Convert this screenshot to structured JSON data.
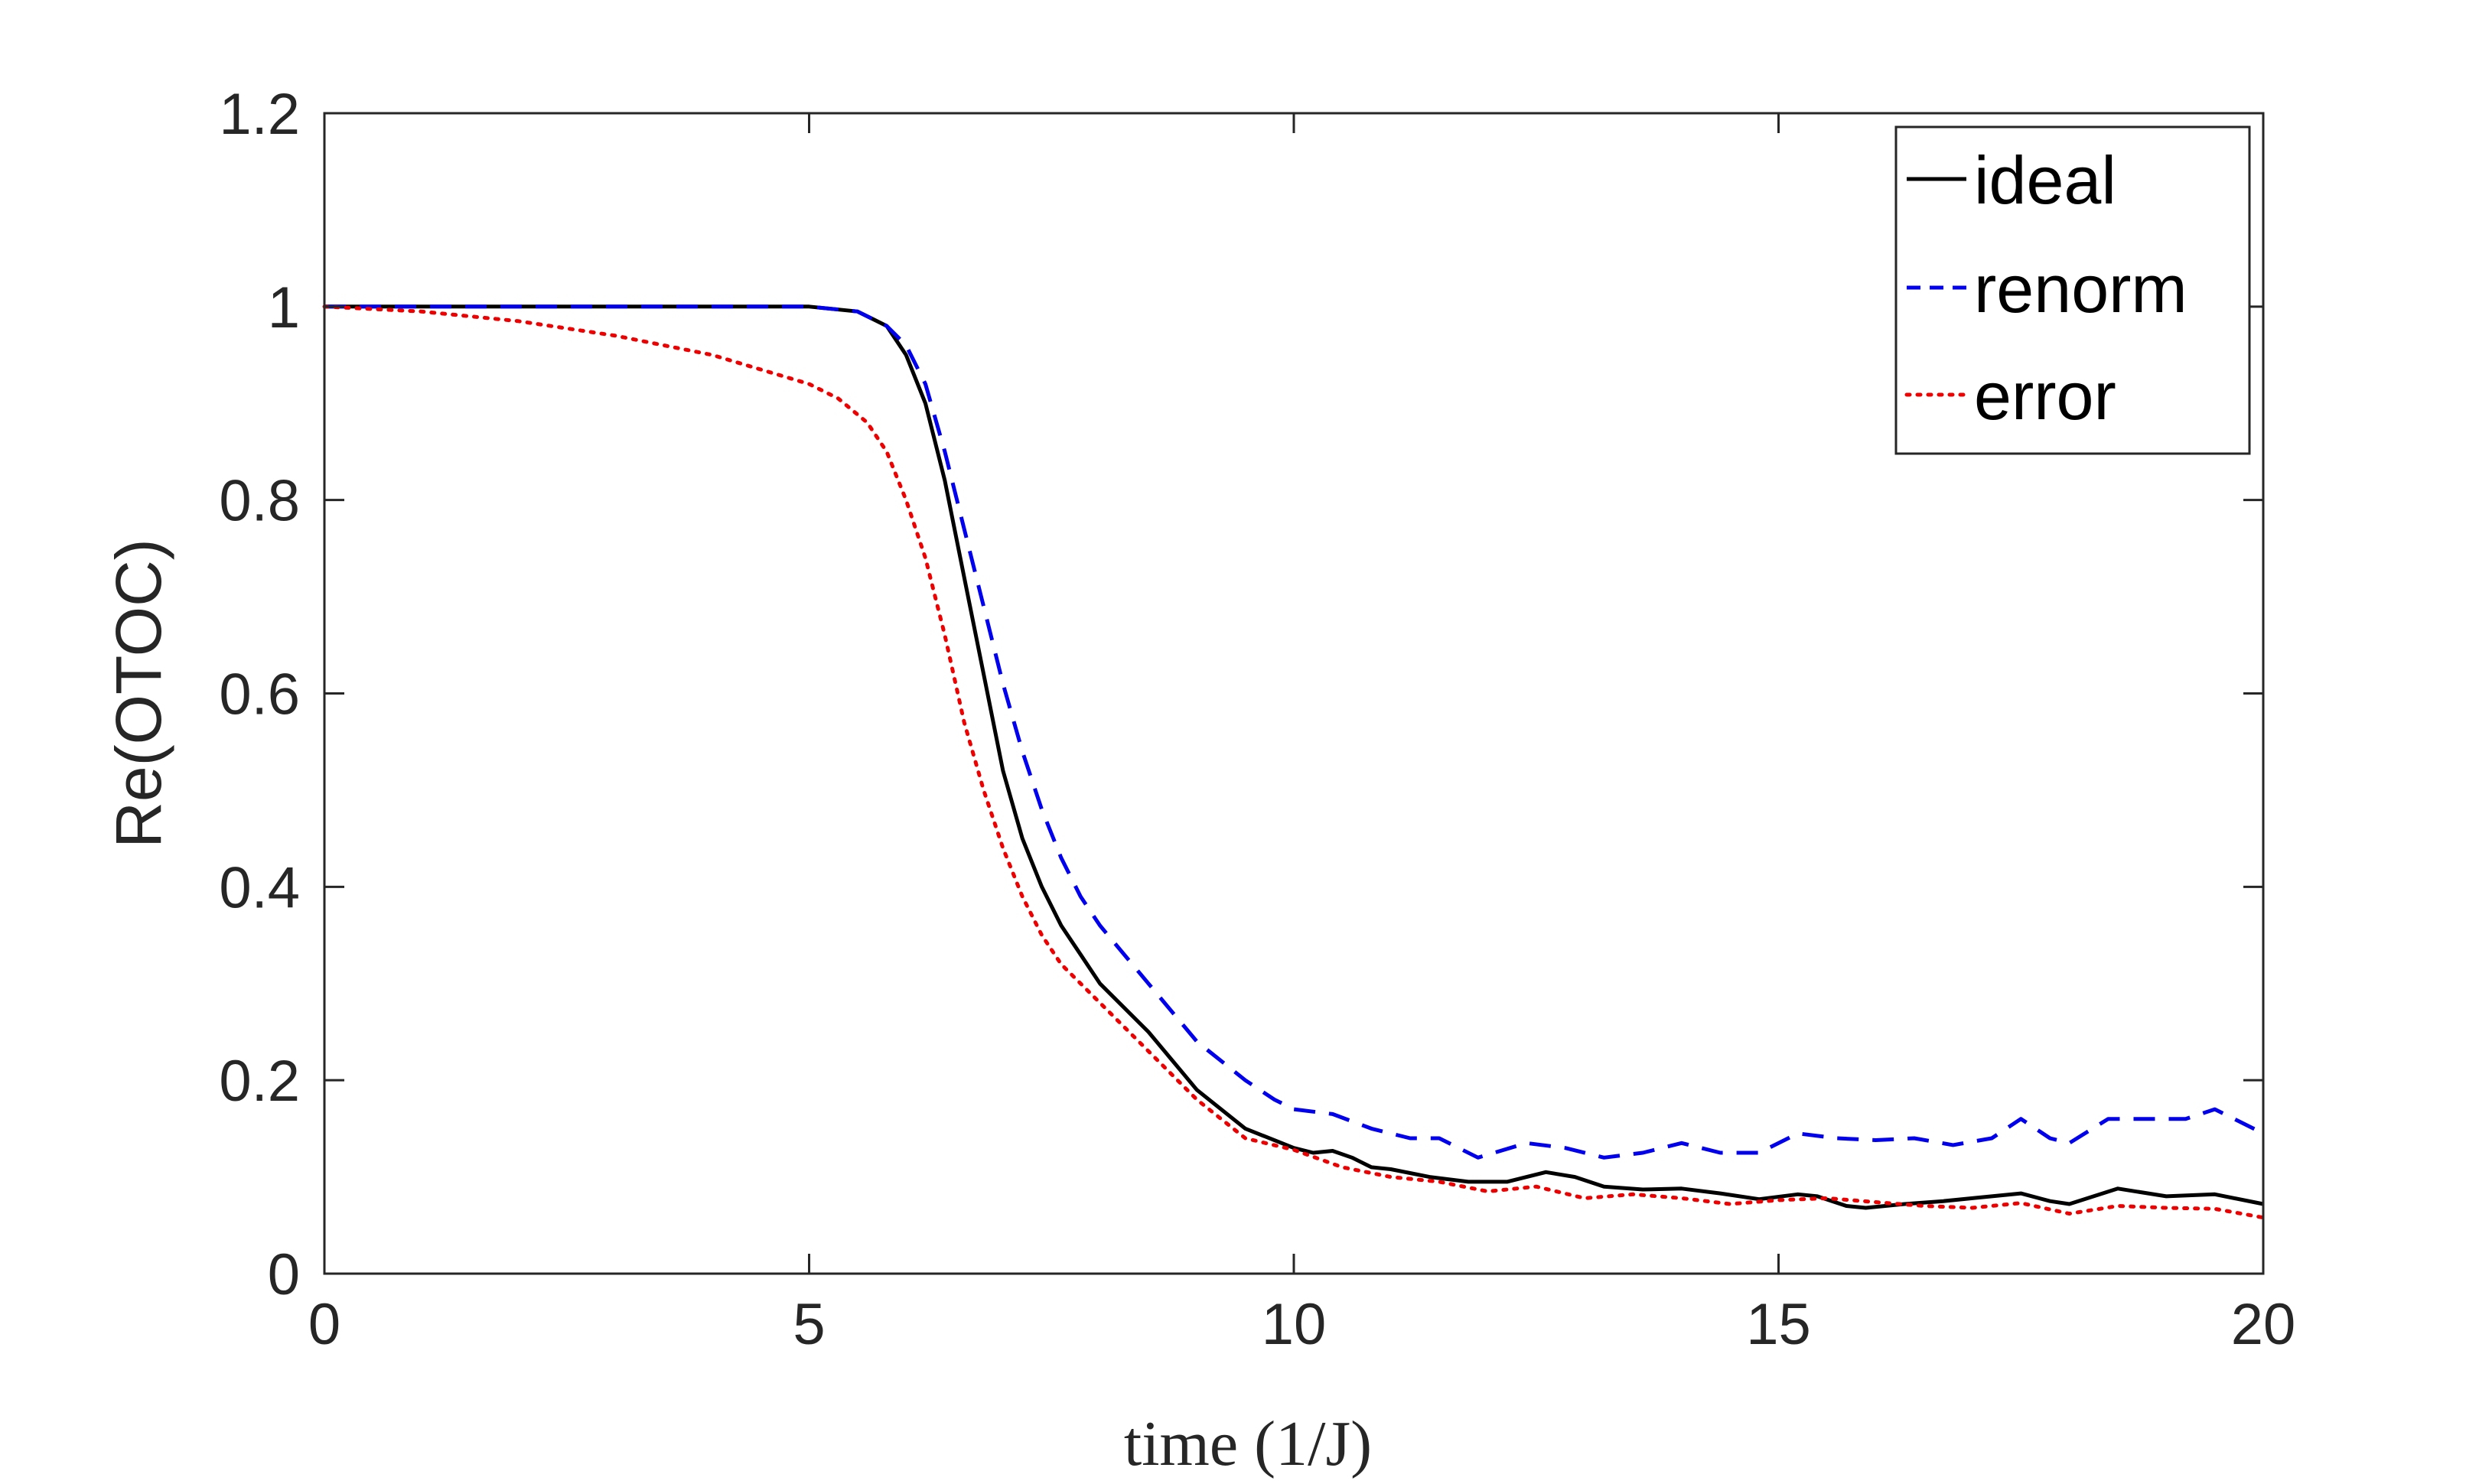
{
  "chart_data": {
    "type": "line",
    "title": "",
    "xlabel": "time (1/J)",
    "ylabel": "Re(OTOC)",
    "xlim": [
      0,
      20
    ],
    "ylim": [
      0,
      1.2
    ],
    "xticks": [
      0,
      5,
      10,
      15,
      20
    ],
    "xtick_labels": [
      "0",
      "5",
      "10",
      "15",
      "20"
    ],
    "yticks": [
      0,
      0.2,
      0.4,
      0.6,
      0.8,
      1,
      1.2
    ],
    "ytick_labels": [
      "0",
      "0.2",
      "0.4",
      "0.6",
      "0.8",
      "1",
      "1.2"
    ],
    "grid": false,
    "legend_position": "top-right",
    "series": [
      {
        "name": "ideal",
        "color": "#000000",
        "style": "solid",
        "x": [
          0,
          1,
          2,
          3,
          4,
          5,
          5.5,
          5.8,
          6.0,
          6.2,
          6.4,
          6.6,
          6.8,
          7.0,
          7.2,
          7.4,
          7.6,
          7.8,
          8.0,
          8.5,
          9.0,
          9.5,
          10.0,
          10.2,
          10.4,
          10.6,
          10.8,
          11.0,
          11.4,
          11.8,
          12.2,
          12.6,
          12.9,
          13.2,
          13.6,
          14.0,
          14.4,
          14.8,
          15.2,
          15.4,
          15.7,
          15.9,
          16.3,
          16.7,
          17.0,
          17.5,
          17.8,
          18.0,
          18.5,
          19.0,
          19.5,
          20.0
        ],
        "y": [
          1.0,
          1.0,
          1.0,
          1.0,
          1.0,
          1.0,
          0.995,
          0.98,
          0.95,
          0.9,
          0.82,
          0.72,
          0.62,
          0.52,
          0.45,
          0.4,
          0.36,
          0.33,
          0.3,
          0.25,
          0.19,
          0.15,
          0.13,
          0.125,
          0.127,
          0.12,
          0.11,
          0.108,
          0.1,
          0.095,
          0.095,
          0.105,
          0.1,
          0.09,
          0.087,
          0.088,
          0.083,
          0.077,
          0.082,
          0.08,
          0.07,
          0.068,
          0.072,
          0.075,
          0.078,
          0.083,
          0.075,
          0.072,
          0.088,
          0.08,
          0.082,
          0.072
        ]
      },
      {
        "name": "renorm",
        "color": "#0000ee",
        "style": "dashed",
        "x": [
          0,
          1,
          2,
          3,
          4,
          5,
          5.5,
          5.8,
          6.0,
          6.2,
          6.4,
          6.6,
          6.8,
          7.0,
          7.2,
          7.4,
          7.6,
          7.8,
          8.0,
          8.5,
          9.0,
          9.5,
          9.8,
          10.0,
          10.4,
          10.8,
          11.2,
          11.5,
          11.9,
          12.4,
          12.8,
          13.2,
          13.6,
          14.0,
          14.4,
          14.8,
          15.2,
          15.6,
          16.0,
          16.4,
          16.8,
          17.2,
          17.5,
          17.8,
          18.0,
          18.4,
          18.8,
          19.2,
          19.5,
          20.0
        ],
        "y": [
          1.0,
          1.0,
          1.0,
          1.0,
          1.0,
          1.0,
          0.995,
          0.98,
          0.96,
          0.92,
          0.85,
          0.77,
          0.69,
          0.61,
          0.54,
          0.48,
          0.43,
          0.39,
          0.36,
          0.3,
          0.24,
          0.2,
          0.18,
          0.17,
          0.165,
          0.15,
          0.14,
          0.14,
          0.12,
          0.135,
          0.13,
          0.12,
          0.125,
          0.135,
          0.125,
          0.125,
          0.145,
          0.14,
          0.138,
          0.14,
          0.133,
          0.14,
          0.16,
          0.14,
          0.135,
          0.16,
          0.16,
          0.16,
          0.17,
          0.145
        ]
      },
      {
        "name": "error",
        "color": "#ee0000",
        "style": "dotted",
        "x": [
          0,
          1,
          2,
          3,
          4,
          4.5,
          5.0,
          5.3,
          5.6,
          5.8,
          6.0,
          6.2,
          6.4,
          6.6,
          6.8,
          7.0,
          7.2,
          7.4,
          7.6,
          7.8,
          8.0,
          8.5,
          9.0,
          9.5,
          10.0,
          10.5,
          11.0,
          11.5,
          12.0,
          12.5,
          13.0,
          13.5,
          14.0,
          14.5,
          15.0,
          15.5,
          16.0,
          16.5,
          17.0,
          17.5,
          18.0,
          18.5,
          19.0,
          19.5,
          20.0
        ],
        "y": [
          1.0,
          0.995,
          0.985,
          0.97,
          0.95,
          0.935,
          0.92,
          0.905,
          0.88,
          0.85,
          0.8,
          0.74,
          0.66,
          0.57,
          0.5,
          0.44,
          0.39,
          0.35,
          0.32,
          0.3,
          0.28,
          0.23,
          0.18,
          0.14,
          0.128,
          0.11,
          0.1,
          0.095,
          0.085,
          0.09,
          0.078,
          0.082,
          0.078,
          0.072,
          0.076,
          0.078,
          0.074,
          0.07,
          0.068,
          0.073,
          0.062,
          0.07,
          0.068,
          0.067,
          0.058
        ]
      }
    ]
  }
}
